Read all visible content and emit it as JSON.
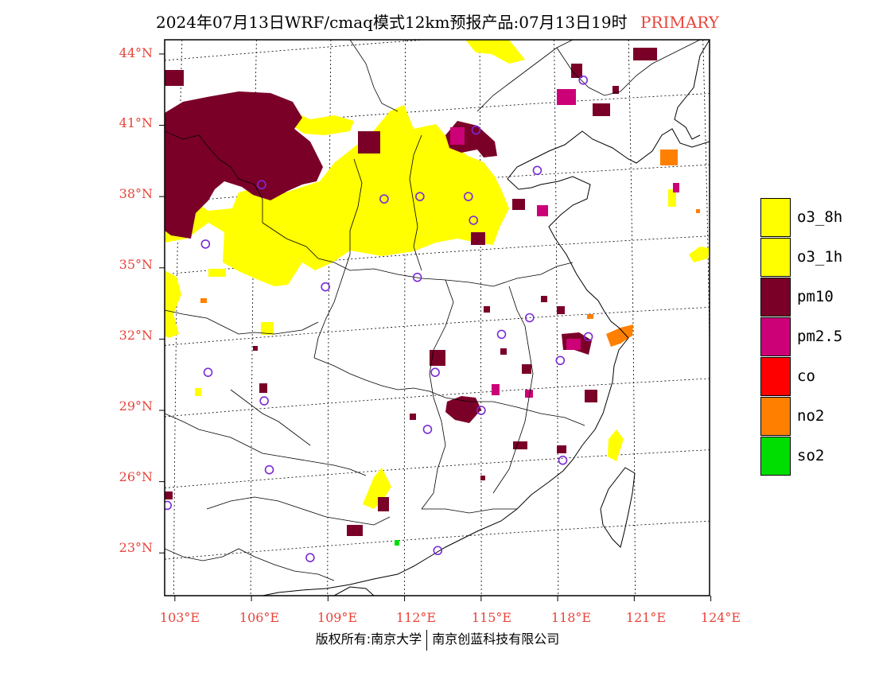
{
  "header": {
    "title": "2024年07月13日WRF/cmaq模式12km预报产品:07月13日19时",
    "tag": "PRIMARY",
    "tag_color": "#e8443a"
  },
  "axes": {
    "lat_labels": [
      "44°N",
      "41°N",
      "38°N",
      "35°N",
      "32°N",
      "29°N",
      "26°N",
      "23°N"
    ],
    "lon_labels": [
      "103°E",
      "106°E",
      "109°E",
      "112°E",
      "115°E",
      "118°E",
      "121°E",
      "124°E"
    ],
    "label_color": "#e8443a"
  },
  "legend": [
    {
      "label": "o3_8h",
      "color": "#ffff00"
    },
    {
      "label": "o3_1h",
      "color": "#ffff00"
    },
    {
      "label": "pm10",
      "color": "#7a0028"
    },
    {
      "label": "pm2.5",
      "color": "#cc0077"
    },
    {
      "label": "co",
      "color": "#ff0000"
    },
    {
      "label": "no2",
      "color": "#ff8000"
    },
    {
      "label": "so2",
      "color": "#00dd00"
    }
  ],
  "map_data": {
    "station_marker": "circle",
    "station_color": "#7a2bd6",
    "stations": [
      {
        "lon": 106.4,
        "lat": 38.5
      },
      {
        "lon": 104.2,
        "lat": 36.0
      },
      {
        "lon": 111.2,
        "lat": 37.9
      },
      {
        "lon": 112.6,
        "lat": 38.0
      },
      {
        "lon": 114.5,
        "lat": 38.0
      },
      {
        "lon": 114.7,
        "lat": 37.0
      },
      {
        "lon": 114.8,
        "lat": 40.8
      },
      {
        "lon": 117.2,
        "lat": 39.1
      },
      {
        "lon": 119.0,
        "lat": 42.9
      },
      {
        "lon": 112.5,
        "lat": 34.6
      },
      {
        "lon": 108.9,
        "lat": 34.2
      },
      {
        "lon": 116.9,
        "lat": 32.9
      },
      {
        "lon": 115.8,
        "lat": 32.2
      },
      {
        "lon": 119.2,
        "lat": 32.1
      },
      {
        "lon": 118.1,
        "lat": 31.1
      },
      {
        "lon": 113.2,
        "lat": 30.6
      },
      {
        "lon": 104.3,
        "lat": 30.6
      },
      {
        "lon": 106.5,
        "lat": 29.4
      },
      {
        "lon": 115.0,
        "lat": 29.0
      },
      {
        "lon": 112.9,
        "lat": 28.2
      },
      {
        "lon": 106.7,
        "lat": 26.5
      },
      {
        "lon": 102.7,
        "lat": 25.0
      },
      {
        "lon": 118.2,
        "lat": 26.9
      },
      {
        "lon": 108.3,
        "lat": 22.8
      },
      {
        "lon": 113.3,
        "lat": 23.1
      }
    ]
  },
  "footer": {
    "left": "版权所有:南京大学",
    "right": "南京创蓝科技有限公司"
  }
}
